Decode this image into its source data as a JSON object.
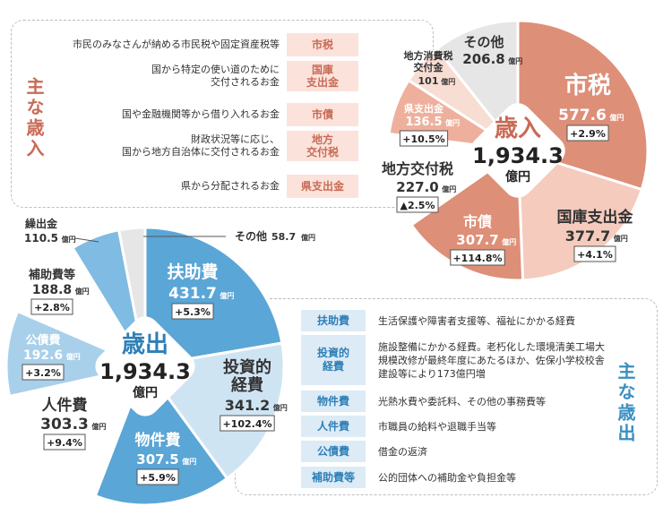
{
  "revenue_section": {
    "title": "主な歳入",
    "items": [
      {
        "desc": "市民のみなさんが納める市民税や固定資産税等",
        "tag": "市税"
      },
      {
        "desc": "国から特定の使い道のために\n交付されるお金",
        "tag": "国庫\n支出金"
      },
      {
        "desc": "国や金融機関等から借り入れるお金",
        "tag": "市債"
      },
      {
        "desc": "財政状況等に応じ、\n国から地方自治体に交付されるお金",
        "tag": "地方\n交付税"
      },
      {
        "desc": "県から分配されるお金",
        "tag": "県支出金"
      }
    ]
  },
  "expenditure_section": {
    "title": "主な歳出",
    "items": [
      {
        "tag": "扶助費",
        "desc": "生活保護や障害者支援等、福祉にかかる経費"
      },
      {
        "tag": "投資的\n経費",
        "desc": "施設整備にかかる経費。老朽化した環境清美工場大規模改修が最終年度にあたるほか、佐保小学校校舎建設等により173億円増"
      },
      {
        "tag": "物件費",
        "desc": "光熱水費や委託料、その他の事務費等"
      },
      {
        "tag": "人件費",
        "desc": "市職員の給料や退職手当等"
      },
      {
        "tag": "公債費",
        "desc": "借金の返済"
      },
      {
        "tag": "補助費等",
        "desc": "公的団体への補助金や負担金等"
      }
    ]
  },
  "chart_data": [
    {
      "type": "pie",
      "title": "歳入",
      "total_value": "1,934.3",
      "total_unit": "億円",
      "unit": "億円",
      "series": [
        {
          "name": "市税",
          "value": 577.6,
          "value_label": "577.6",
          "change": "+2.9%",
          "color": "#de8f78"
        },
        {
          "name": "国庫支出金",
          "value": 377.7,
          "value_label": "377.7",
          "change": "+4.1%",
          "color": "#f4cbbd"
        },
        {
          "name": "市債",
          "value": 307.7,
          "value_label": "307.7",
          "change": "+114.8%",
          "color": "#de8f78"
        },
        {
          "name": "地方交付税",
          "value": 227.0,
          "value_label": "227.0",
          "change": "▲2.5%",
          "color": "#ffffff"
        },
        {
          "name": "県支出金",
          "value": 136.5,
          "value_label": "136.5",
          "change": "+10.5%",
          "color": "#eeb09d"
        },
        {
          "name": "地方消費税交付金",
          "value": 101.0,
          "value_label": "101",
          "change": "",
          "color": "#f8ddd3"
        },
        {
          "name": "その他",
          "value": 206.8,
          "value_label": "206.8",
          "change": "",
          "color": "#e6e6e6"
        }
      ]
    },
    {
      "type": "pie",
      "title": "歳出",
      "total_value": "1,934.3",
      "total_unit": "億円",
      "unit": "億円",
      "series": [
        {
          "name": "扶助費",
          "value": 431.7,
          "value_label": "431.7",
          "change": "+5.3%",
          "color": "#5aa6d6"
        },
        {
          "name": "投資的経費",
          "value": 341.2,
          "value_label": "341.2",
          "change": "+102.4%",
          "color": "#cfe4f3"
        },
        {
          "name": "物件費",
          "value": 307.5,
          "value_label": "307.5",
          "change": "+5.9%",
          "color": "#5aa6d6"
        },
        {
          "name": "人件費",
          "value": 303.3,
          "value_label": "303.3",
          "change": "+9.4%",
          "color": "#ffffff"
        },
        {
          "name": "公債費",
          "value": 192.6,
          "value_label": "192.6",
          "change": "+3.2%",
          "color": "#a9d0ea"
        },
        {
          "name": "補助費等",
          "value": 188.8,
          "value_label": "188.8",
          "change": "+2.8%",
          "color": "#ffffff"
        },
        {
          "name": "繰出金",
          "value": 110.5,
          "value_label": "110.5",
          "change": "",
          "color": "#7fbbe2"
        },
        {
          "name": "その他",
          "value": 58.7,
          "value_label": "58.7",
          "change": "",
          "color": "#e6e6e6"
        }
      ]
    }
  ]
}
